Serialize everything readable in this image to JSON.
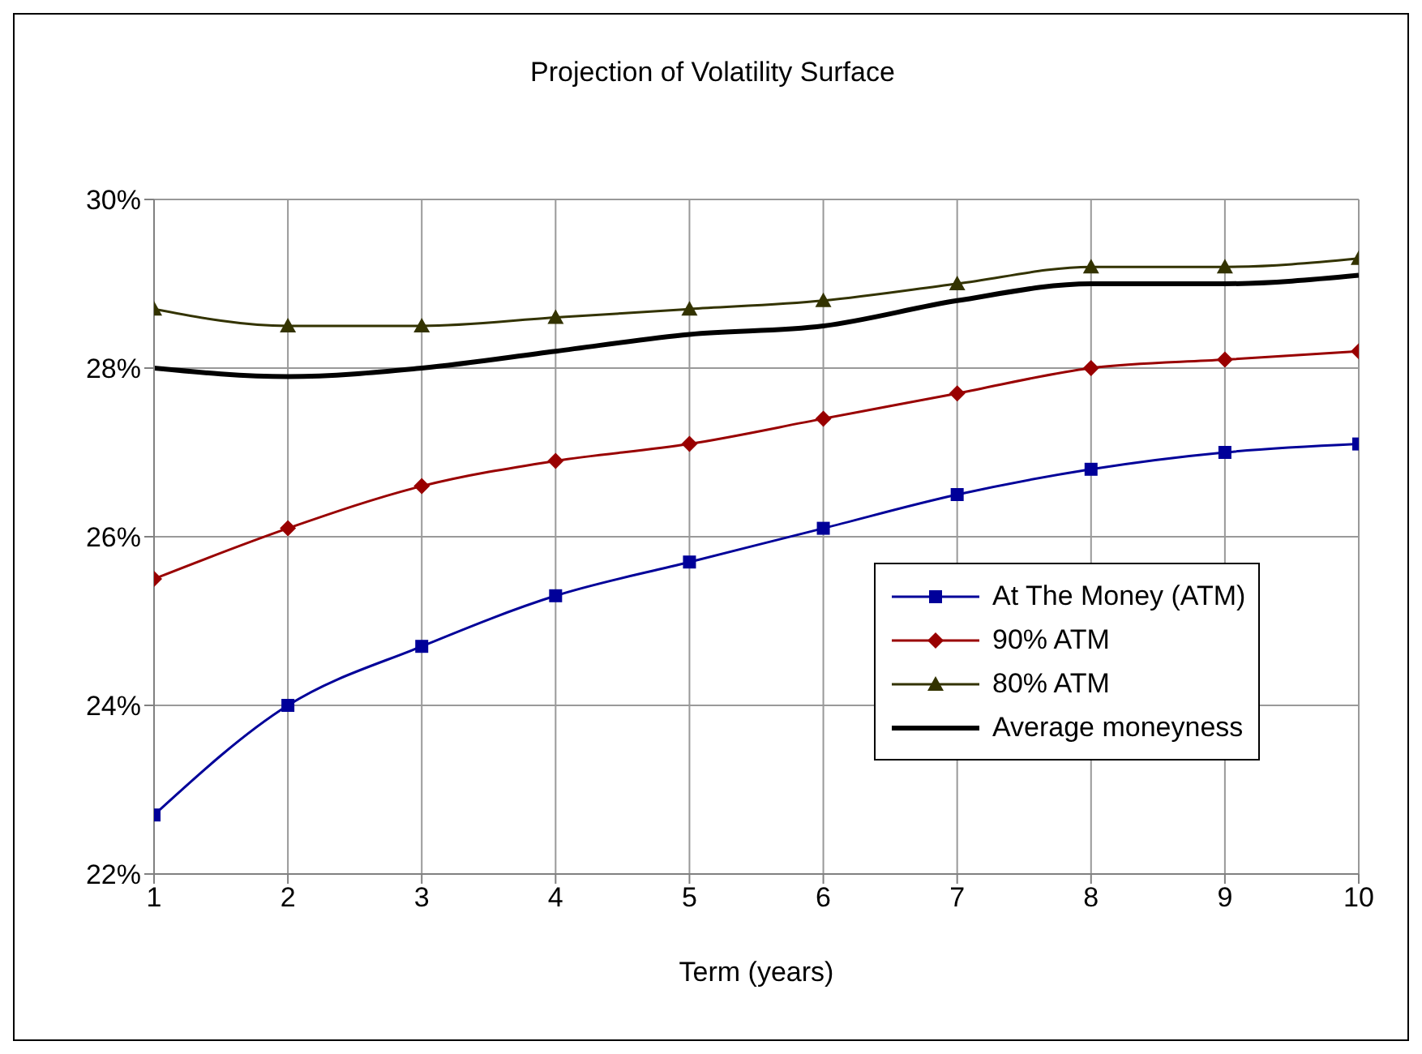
{
  "chart_data": {
    "type": "line",
    "title": "Projection of Volatility Surface",
    "xlabel": "Term (years)",
    "x": [
      1,
      2,
      3,
      4,
      5,
      6,
      7,
      8,
      9,
      10
    ],
    "xlim": [
      1,
      10
    ],
    "xticks": [
      1,
      2,
      3,
      4,
      5,
      6,
      7,
      8,
      9,
      10
    ],
    "ylim": [
      22,
      30
    ],
    "yticks": [
      {
        "value": 22,
        "label": "22%"
      },
      {
        "value": 24,
        "label": "24%"
      },
      {
        "value": 26,
        "label": "26%"
      },
      {
        "value": 28,
        "label": "28%"
      },
      {
        "value": 30,
        "label": "30%"
      }
    ],
    "grid": true,
    "legend": "bottom right",
    "series": [
      {
        "name": "At The Money (ATM)",
        "color": "#000099",
        "marker": "square",
        "values": [
          22.7,
          24.0,
          24.7,
          25.3,
          25.7,
          26.1,
          26.5,
          26.8,
          27.0,
          27.1
        ]
      },
      {
        "name": "90% ATM",
        "color": "#990000",
        "marker": "diamond",
        "values": [
          25.5,
          26.1,
          26.6,
          26.9,
          27.1,
          27.4,
          27.7,
          28.0,
          28.1,
          28.2
        ]
      },
      {
        "name": "80% ATM",
        "color": "#333300",
        "marker": "triangle",
        "values": [
          28.7,
          28.5,
          28.5,
          28.6,
          28.7,
          28.8,
          29.0,
          29.2,
          29.2,
          29.3
        ]
      },
      {
        "name": "Average moneyness",
        "color": "#000000",
        "marker": "none",
        "values": [
          28.0,
          27.9,
          28.0,
          28.2,
          28.4,
          28.5,
          28.8,
          29.0,
          29.0,
          29.1
        ]
      }
    ]
  }
}
